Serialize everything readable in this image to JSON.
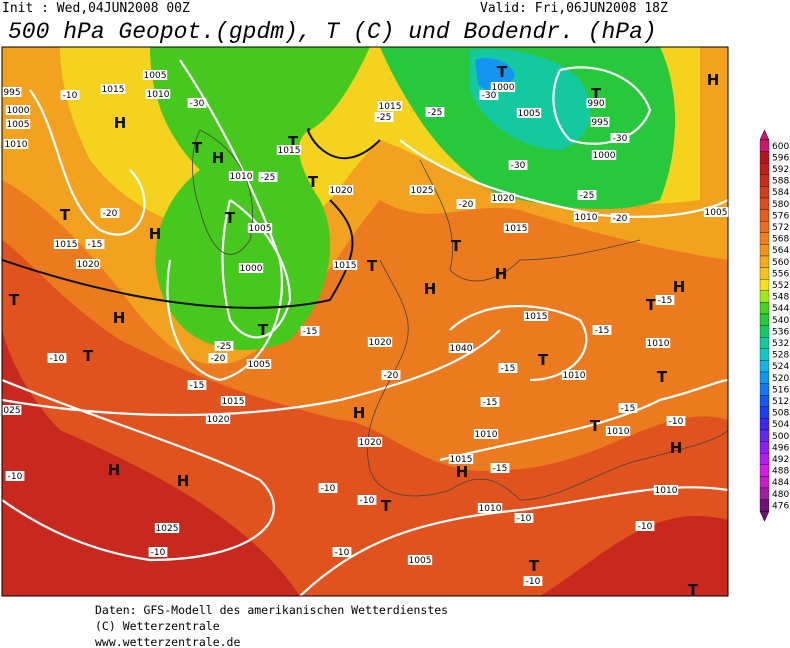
{
  "header": {
    "init": "Init : Wed,04JUN2008 00Z",
    "valid": "Valid: Fri,06JUN2008 18Z",
    "title": "500 hPa Geopot.(gpdm), T (C) und Bodendr. (hPa)"
  },
  "legend": {
    "levels": [
      600,
      596,
      592,
      588,
      584,
      580,
      576,
      572,
      568,
      564,
      560,
      556,
      552,
      548,
      544,
      540,
      536,
      532,
      528,
      524,
      520,
      516,
      512,
      508,
      504,
      500,
      496,
      492,
      488,
      484,
      480,
      476
    ],
    "colors": [
      "#c8186c",
      "#b4141e",
      "#c01e1e",
      "#cc2a1e",
      "#d63c1e",
      "#de4c1e",
      "#e65c1e",
      "#ea6c1e",
      "#ee801e",
      "#f2941e",
      "#f4aa1e",
      "#f6c21e",
      "#f4e01e",
      "#9ee81e",
      "#46d21e",
      "#28c83c",
      "#14c864",
      "#14c8a0",
      "#14c8c8",
      "#14b4e6",
      "#1496f0",
      "#1478f0",
      "#145af0",
      "#1e3cf0",
      "#3c28f0",
      "#6428f0",
      "#8c1ef0",
      "#b41ef0",
      "#d21ee6",
      "#c81ec8",
      "#a01ea0",
      "#6e1478"
    ]
  },
  "map": {
    "pressure_systems": [
      "H",
      "T",
      "T",
      "H",
      "T",
      "T",
      "T",
      "H",
      "T",
      "H",
      "T",
      "T",
      "T",
      "H",
      "T",
      "H",
      "T",
      "T",
      "H",
      "T",
      "T",
      "T",
      "H",
      "T",
      "H",
      "H",
      "H",
      "H",
      "T",
      "H",
      "T",
      "T"
    ],
    "isoline_labels": [
      "995",
      "1000",
      "1005",
      "1010",
      "1015",
      "1005",
      "1010",
      "-10",
      "-30",
      "-25",
      "1010",
      "1015",
      "1020",
      "1025",
      "1020",
      "1015",
      "1000",
      "-30",
      "1005",
      "990",
      "995",
      "-30",
      "1000",
      "-30",
      "-25",
      "1010",
      "-20",
      "1005",
      "-20",
      "-15",
      "1015",
      "1020",
      "1005",
      "1000",
      "-15",
      "-25",
      "-20",
      "1005",
      "-15",
      "1015",
      "1020",
      "-20",
      "1020",
      "1015",
      "1040",
      "1015",
      "-15",
      "-15",
      "1010",
      "1010",
      "-15",
      "-15",
      "1010",
      "-15",
      "1010",
      "-10",
      "1015",
      "-15",
      "1010",
      "-10",
      "-10",
      "-10",
      "025",
      "1020",
      "-10",
      "-10",
      "1010",
      "-10",
      "1025",
      "-10",
      "-10",
      "1005",
      "-10",
      "-20",
      "-25",
      "-25",
      "1015"
    ]
  },
  "footer": {
    "line1": "Daten: GFS-Modell des amerikanischen Wetterdienstes",
    "line2": "(C) Wetterzentrale",
    "line3": "www.wetterzentrale.de"
  }
}
